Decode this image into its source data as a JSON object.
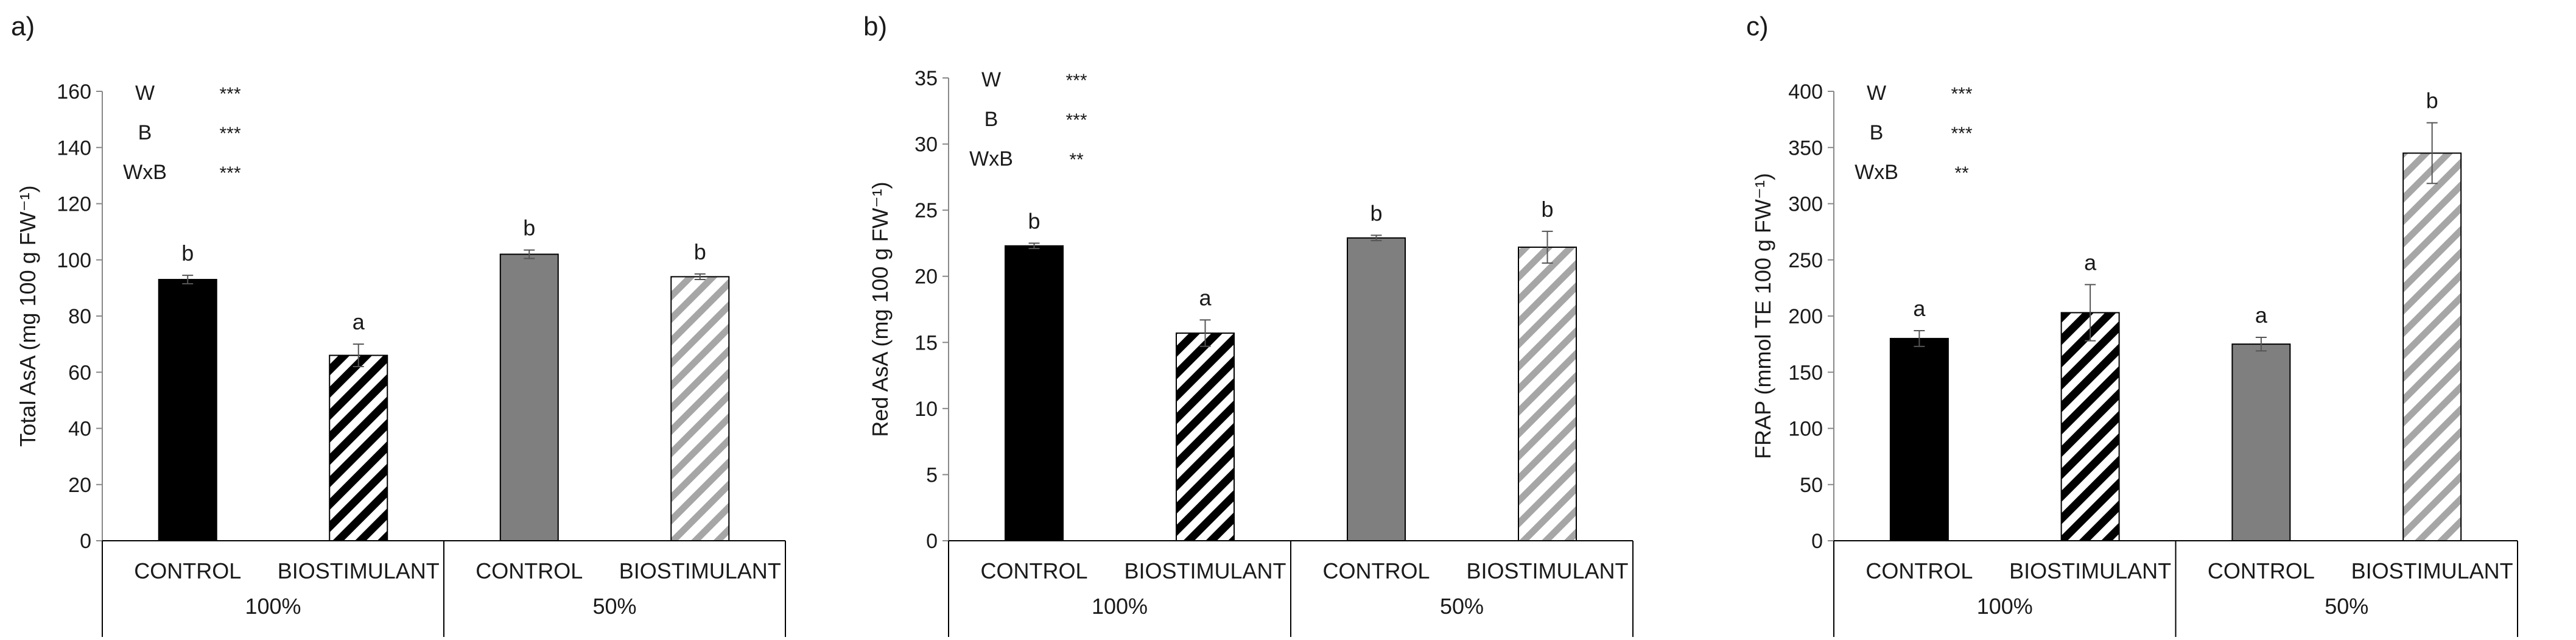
{
  "chart_data": [
    {
      "type": "bar",
      "panel_label": "a)",
      "ylabel": "Total AsA (mg 100 g FW⁻¹)",
      "ylim": [
        0,
        160
      ],
      "yticks": [
        0,
        20,
        40,
        60,
        80,
        100,
        120,
        140,
        160
      ],
      "groups": [
        {
          "label": "100%",
          "categories": [
            "CONTROL",
            "BIOSTIMULANT"
          ]
        },
        {
          "label": "50%",
          "categories": [
            "CONTROL",
            "BIOSTIMULANT"
          ]
        }
      ],
      "bars": [
        {
          "group": "100%",
          "category": "CONTROL",
          "value": 93,
          "error": 1.5,
          "letter": "b",
          "fill": "#000000",
          "pattern": "solid"
        },
        {
          "group": "100%",
          "category": "BIOSTIMULANT",
          "value": 66,
          "error": 4,
          "letter": "a",
          "fill": "#000000",
          "pattern": "hatch-dark"
        },
        {
          "group": "50%",
          "category": "CONTROL",
          "value": 102,
          "error": 1.5,
          "letter": "b",
          "fill": "#7f7f7f",
          "pattern": "solid"
        },
        {
          "group": "50%",
          "category": "BIOSTIMULANT",
          "value": 94,
          "error": 1,
          "letter": "b",
          "fill": "#a6a6a6",
          "pattern": "hatch-light"
        }
      ],
      "stats": [
        {
          "factor": "W",
          "sig": "***"
        },
        {
          "factor": "B",
          "sig": "***"
        },
        {
          "factor": "WxB",
          "sig": "***"
        }
      ]
    },
    {
      "type": "bar",
      "panel_label": "b)",
      "ylabel": "Red AsA (mg 100 g FW⁻¹)",
      "ylim": [
        0,
        35
      ],
      "yticks": [
        0,
        5,
        10,
        15,
        20,
        25,
        30,
        35
      ],
      "groups": [
        {
          "label": "100%",
          "categories": [
            "CONTROL",
            "BIOSTIMULANT"
          ]
        },
        {
          "label": "50%",
          "categories": [
            "CONTROL",
            "BIOSTIMULANT"
          ]
        }
      ],
      "bars": [
        {
          "group": "100%",
          "category": "CONTROL",
          "value": 22.3,
          "error": 0.2,
          "letter": "b",
          "fill": "#000000",
          "pattern": "solid"
        },
        {
          "group": "100%",
          "category": "BIOSTIMULANT",
          "value": 15.7,
          "error": 1,
          "letter": "a",
          "fill": "#000000",
          "pattern": "hatch-dark"
        },
        {
          "group": "50%",
          "category": "CONTROL",
          "value": 22.9,
          "error": 0.2,
          "letter": "b",
          "fill": "#7f7f7f",
          "pattern": "solid"
        },
        {
          "group": "50%",
          "category": "BIOSTIMULANT",
          "value": 22.2,
          "error": 1.2,
          "letter": "b",
          "fill": "#a6a6a6",
          "pattern": "hatch-light"
        }
      ],
      "stats": [
        {
          "factor": "W",
          "sig": "***"
        },
        {
          "factor": "B",
          "sig": "***"
        },
        {
          "factor": "WxB",
          "sig": "**"
        }
      ]
    },
    {
      "type": "bar",
      "panel_label": "c)",
      "ylabel": "FRAP (mmol TE 100 g FW⁻¹)",
      "ylim": [
        0,
        400
      ],
      "yticks": [
        0,
        50,
        100,
        150,
        200,
        250,
        300,
        350,
        400
      ],
      "groups": [
        {
          "label": "100%",
          "categories": [
            "CONTROL",
            "BIOSTIMULANT"
          ]
        },
        {
          "label": "50%",
          "categories": [
            "CONTROL",
            "BIOSTIMULANT"
          ]
        }
      ],
      "bars": [
        {
          "group": "100%",
          "category": "CONTROL",
          "value": 180,
          "error": 7,
          "letter": "a",
          "fill": "#000000",
          "pattern": "solid"
        },
        {
          "group": "100%",
          "category": "BIOSTIMULANT",
          "value": 203,
          "error": 25,
          "letter": "a",
          "fill": "#000000",
          "pattern": "hatch-dark"
        },
        {
          "group": "50%",
          "category": "CONTROL",
          "value": 175,
          "error": 6,
          "letter": "a",
          "fill": "#7f7f7f",
          "pattern": "solid"
        },
        {
          "group": "50%",
          "category": "BIOSTIMULANT",
          "value": 345,
          "error": 27,
          "letter": "b",
          "fill": "#a6a6a6",
          "pattern": "hatch-light"
        }
      ],
      "stats": [
        {
          "factor": "W",
          "sig": "***"
        },
        {
          "factor": "B",
          "sig": "***"
        },
        {
          "factor": "WxB",
          "sig": "**"
        }
      ]
    }
  ]
}
